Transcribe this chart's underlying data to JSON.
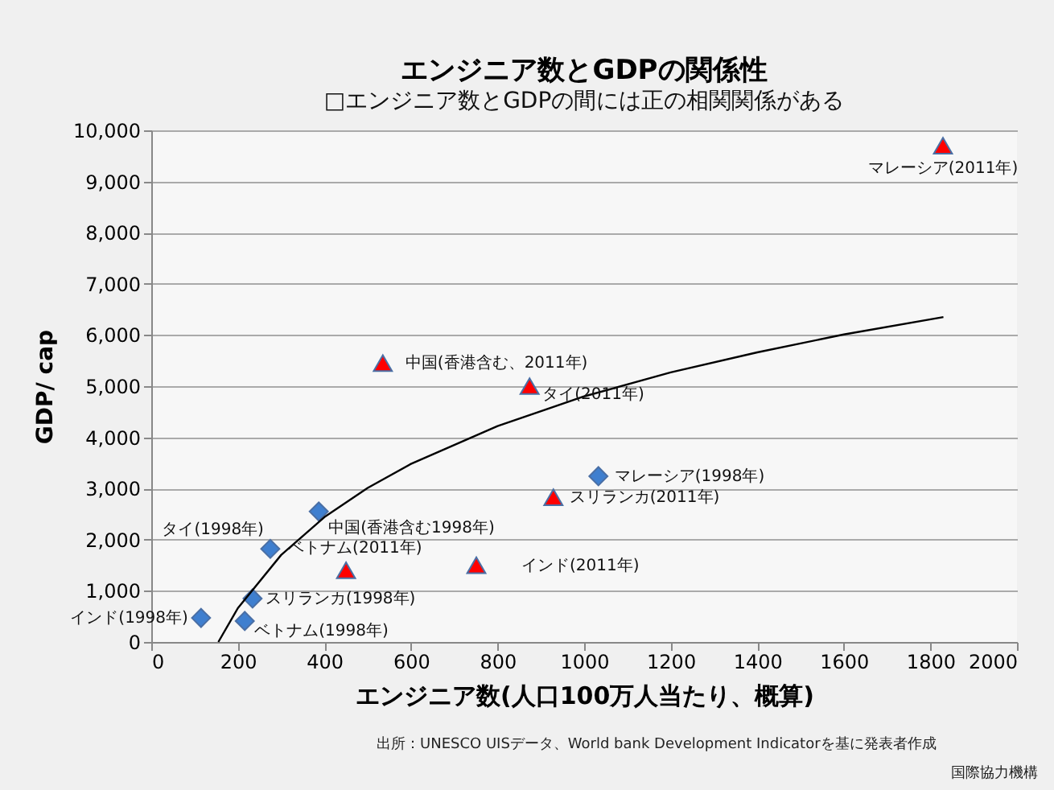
{
  "chart_data": {
    "type": "scatter",
    "title": "エンジニア数とGDPの関係性",
    "subtitle": "□エンジニア数とGDPの間には正の相関関係がある",
    "xlabel": "エンジニア数(人口100万人当たり、概算)",
    "ylabel": "GDP/ cap",
    "xlim": [
      0,
      2000
    ],
    "xticks": [
      0,
      200,
      400,
      600,
      800,
      1000,
      1200,
      1400,
      1600,
      1800,
      2000
    ],
    "ylim": [
      0,
      10000
    ],
    "yticks": [
      0,
      {
        "value": 1000,
        "label": "1,000"
      },
      {
        "value": 2000,
        "label": "2,000"
      },
      {
        "value": 3000,
        "label": "3,000"
      },
      {
        "value": 4000,
        "label": "4,000"
      },
      {
        "value": 5000,
        "label": "5,000"
      },
      {
        "value": 6000,
        "label": "6,000"
      },
      {
        "value": 7000,
        "label": "7,000"
      },
      {
        "value": 8000,
        "label": "8,000"
      },
      {
        "value": 9000,
        "label": "9,000"
      },
      {
        "value": 10000,
        "label": "10,000"
      }
    ],
    "grid": "y",
    "series": [
      {
        "marker": "diamond",
        "color": "#3f7fcf",
        "x": [
          115,
          216,
          234,
          275,
          387,
          1033
        ],
        "values": [
          470,
          410,
          850,
          1820,
          2550,
          3240
        ]
      },
      {
        "marker": "triangle",
        "color": "#ff0000",
        "x": [
          450,
          751,
          535,
          874,
          929,
          1829
        ],
        "values": [
          1400,
          1500,
          5450,
          5000,
          2830,
          9700
        ]
      },
      {
        "type": "line",
        "marker": "none",
        "color": "#000000",
        "x": [
          155,
          200,
          300,
          400,
          500,
          600,
          800,
          1000,
          1200,
          1400,
          1600,
          1830
        ],
        "values": [
          0,
          660,
          1700,
          2440,
          3010,
          3480,
          4220,
          4800,
          5270,
          5660,
          6010,
          6350
        ]
      }
    ],
    "annotations": [
      {
        "text": "インド(1998年)",
        "x": 115,
        "y": 470
      },
      {
        "text": "ベトナム(1998年)",
        "x": 216,
        "y": 410
      },
      {
        "text": "スリランカ(1998年)",
        "x": 234,
        "y": 850
      },
      {
        "text": "タイ(1998年)",
        "x": 275,
        "y": 1820
      },
      {
        "text": "中国(香港含む1998年)",
        "x": 387,
        "y": 2550
      },
      {
        "text": "マレーシア(1998年)",
        "x": 1033,
        "y": 3240
      },
      {
        "text": "ベトナム(2011年)",
        "x": 450,
        "y": 1400
      },
      {
        "text": "インド(2011年)",
        "x": 751,
        "y": 1500
      },
      {
        "text": "中国(香港含む、2011年)",
        "x": 535,
        "y": 5450
      },
      {
        "text": "タイ(2011年)",
        "x": 874,
        "y": 5000
      },
      {
        "text": "スリランカ(2011年)",
        "x": 929,
        "y": 2830
      },
      {
        "text": "マレーシア(2011年)",
        "x": 1829,
        "y": 9700
      },
      "出所：UNESCO UISデータ、World bank Development Indicatorを基に発表者作成",
      "国際協力機構"
    ]
  }
}
